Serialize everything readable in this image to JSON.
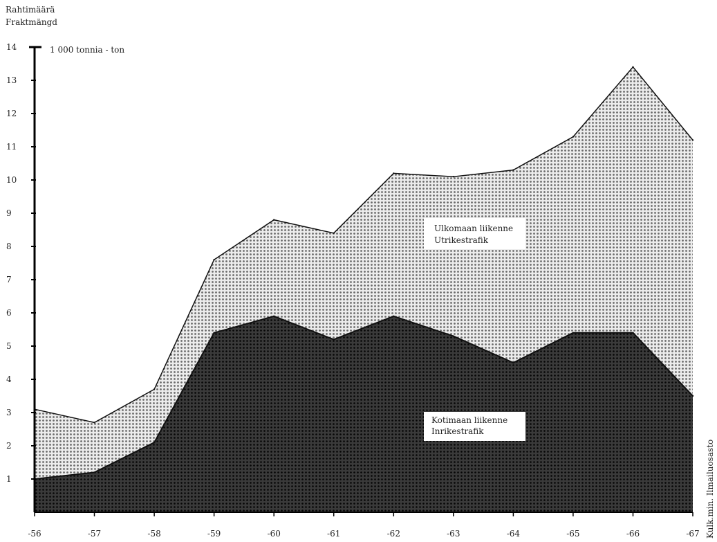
{
  "chart_data": {
    "type": "area",
    "stacked": false,
    "ylabel_fi": "Rahtimäärä",
    "ylabel_sv": "Fraktmängd",
    "unit_label": "1 000 tonnia - ton",
    "source": "Kulk.min. Ilmailuosasto",
    "x": [
      "-56",
      "-57",
      "-58",
      "-59",
      "-60",
      "-61",
      "-62",
      "-63",
      "-64",
      "-65",
      "-66",
      "-67"
    ],
    "y_ticks": [
      "1",
      "2",
      "3",
      "4",
      "5",
      "6",
      "7",
      "8",
      "9",
      "10",
      "11",
      "12",
      "13",
      "14"
    ],
    "ylim": [
      0,
      14
    ],
    "grid": false,
    "series": [
      {
        "name_fi": "Ulkomaan liikenne",
        "name_sv": "Utrikestrafik",
        "values": [
          3.1,
          2.7,
          3.7,
          7.6,
          8.8,
          8.4,
          10.2,
          10.1,
          10.3,
          11.3,
          13.4,
          11.2
        ],
        "color": "#cfcfcf"
      },
      {
        "name_fi": "Kotimaan liikenne",
        "name_sv": "Inrikestrafik",
        "values": [
          1.0,
          1.2,
          2.1,
          5.4,
          5.9,
          5.2,
          5.9,
          5.3,
          4.5,
          5.4,
          5.4,
          3.5
        ],
        "color": "#3a3a3a"
      }
    ]
  }
}
